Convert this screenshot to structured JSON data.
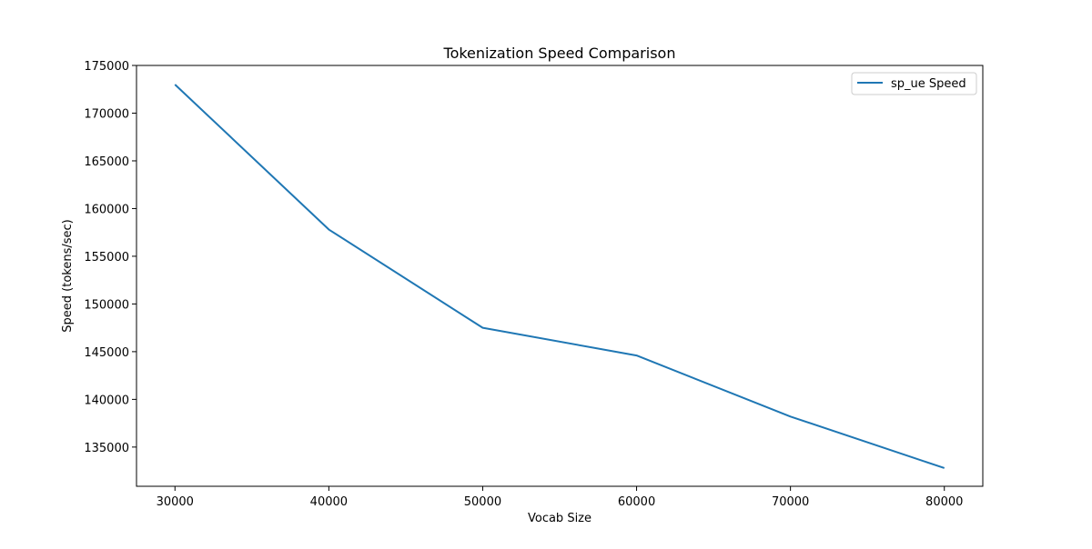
{
  "chart_data": {
    "type": "line",
    "title": "Tokenization Speed Comparison",
    "xlabel": "Vocab Size",
    "ylabel": "Speed (tokens/sec)",
    "x": [
      30000,
      40000,
      50000,
      60000,
      70000,
      80000
    ],
    "series": [
      {
        "name": "sp_ue Speed",
        "color": "#1f77b4",
        "values": [
          173000,
          157800,
          147500,
          144600,
          138200,
          132800
        ]
      }
    ],
    "xticks": [
      30000,
      40000,
      50000,
      60000,
      70000,
      80000
    ],
    "yticks": [
      135000,
      140000,
      145000,
      150000,
      155000,
      160000,
      165000,
      170000,
      175000
    ],
    "xlim": [
      27500,
      82500
    ],
    "ylim": [
      130890,
      175000
    ],
    "grid": false,
    "legend_position": "top-right"
  }
}
